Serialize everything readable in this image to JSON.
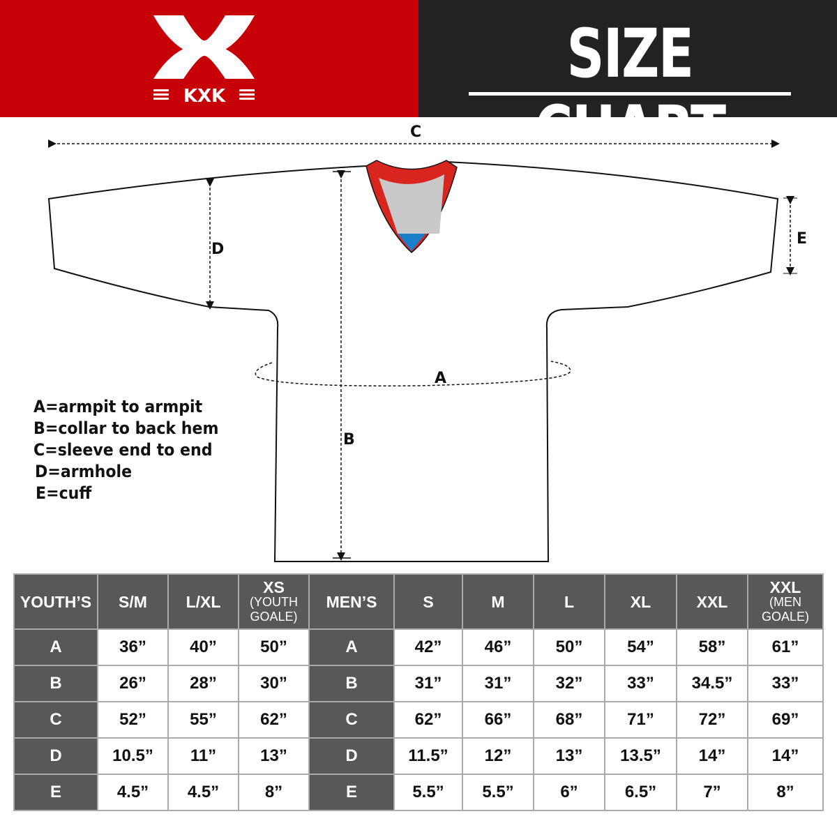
{
  "header": {
    "brand": "KXK",
    "title": "SIZE CHART",
    "colors": {
      "brand_red": "#c60006",
      "dark": "#222222",
      "table_header": "#58585a"
    }
  },
  "diagram": {
    "labels": {
      "a": "A",
      "b": "B",
      "c": "C",
      "d": "D",
      "e": "E"
    }
  },
  "legend": [
    "A=armpit to armpit",
    "B=collar to back hem",
    "C=sleeve end to end",
    "D=armhole",
    "E=cuff"
  ],
  "table": {
    "youth_header": "YOUTH’S",
    "youth_sizes": [
      {
        "main": "S/M",
        "sub": ""
      },
      {
        "main": "L/XL",
        "sub": ""
      },
      {
        "main": "XS",
        "sub": "(YOUTH GOALE)"
      }
    ],
    "men_header": "MEN’S",
    "men_sizes": [
      {
        "main": "S",
        "sub": ""
      },
      {
        "main": "M",
        "sub": ""
      },
      {
        "main": "L",
        "sub": ""
      },
      {
        "main": "XL",
        "sub": ""
      },
      {
        "main": "XXL",
        "sub": ""
      },
      {
        "main": "XXL",
        "sub": "(MEN GOALE)"
      }
    ],
    "rows": [
      {
        "label": "A",
        "youth": [
          "36”",
          "40”",
          "50”"
        ],
        "men": [
          "42”",
          "46”",
          "50”",
          "54”",
          "58”",
          "61”"
        ]
      },
      {
        "label": "B",
        "youth": [
          "26”",
          "28”",
          "30”"
        ],
        "men": [
          "31”",
          "31”",
          "32”",
          "33”",
          "34.5”",
          "33”"
        ]
      },
      {
        "label": "C",
        "youth": [
          "52”",
          "55”",
          "62”"
        ],
        "men": [
          "62”",
          "66”",
          "68”",
          "71”",
          "72”",
          "69”"
        ]
      },
      {
        "label": "D",
        "youth": [
          "10.5”",
          "11”",
          "13”"
        ],
        "men": [
          "11.5”",
          "12”",
          "13”",
          "13.5”",
          "14”",
          "14”"
        ]
      },
      {
        "label": "E",
        "youth": [
          "4.5”",
          "4.5”",
          "8”"
        ],
        "men": [
          "5.5”",
          "5.5”",
          "6”",
          "6.5”",
          "7”",
          "8”"
        ]
      }
    ]
  }
}
